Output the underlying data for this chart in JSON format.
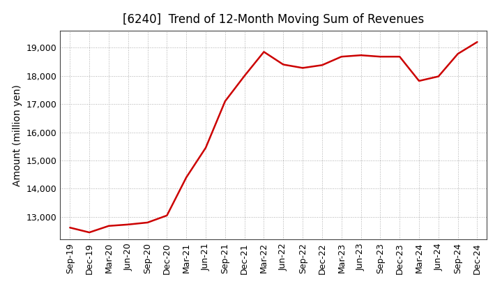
{
  "title": "[6240]  Trend of 12-Month Moving Sum of Revenues",
  "ylabel": "Amount (million yen)",
  "line_color": "#cc0000",
  "background_color": "#ffffff",
  "plot_background": "#ffffff",
  "grid_color": "#999999",
  "x_labels": [
    "Sep-19",
    "Dec-19",
    "Mar-20",
    "Jun-20",
    "Sep-20",
    "Dec-20",
    "Mar-21",
    "Jun-21",
    "Sep-21",
    "Dec-21",
    "Mar-22",
    "Jun-22",
    "Sep-22",
    "Dec-22",
    "Mar-23",
    "Jun-23",
    "Sep-23",
    "Dec-23",
    "Mar-24",
    "Jun-24",
    "Sep-24",
    "Dec-24"
  ],
  "values": [
    12620,
    12450,
    12680,
    12730,
    12800,
    13050,
    14400,
    15450,
    17100,
    18000,
    18850,
    18400,
    18280,
    18380,
    18680,
    18730,
    18680,
    18680,
    17820,
    17980,
    18780,
    19200
  ],
  "ylim_min": 12200,
  "ylim_max": 19600,
  "yticks": [
    13000,
    14000,
    15000,
    16000,
    17000,
    18000,
    19000
  ],
  "title_fontsize": 12,
  "axis_label_fontsize": 10,
  "tick_fontsize": 9
}
